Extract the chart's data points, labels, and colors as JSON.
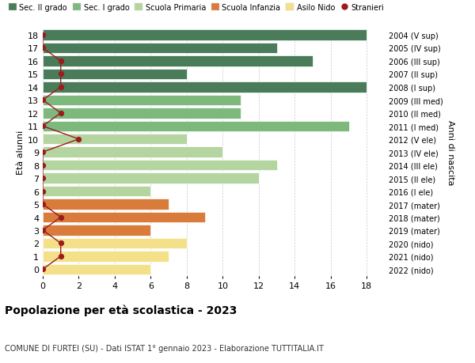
{
  "ages": [
    18,
    17,
    16,
    15,
    14,
    13,
    12,
    11,
    10,
    9,
    8,
    7,
    6,
    5,
    4,
    3,
    2,
    1,
    0
  ],
  "years": [
    "2004 (V sup)",
    "2005 (IV sup)",
    "2006 (III sup)",
    "2007 (II sup)",
    "2008 (I sup)",
    "2009 (III med)",
    "2010 (II med)",
    "2011 (I med)",
    "2012 (V ele)",
    "2013 (IV ele)",
    "2014 (III ele)",
    "2015 (II ele)",
    "2016 (I ele)",
    "2017 (mater)",
    "2018 (mater)",
    "2019 (mater)",
    "2020 (nido)",
    "2021 (nido)",
    "2022 (nido)"
  ],
  "bar_values": [
    18,
    13,
    15,
    8,
    18,
    11,
    11,
    17,
    8,
    10,
    13,
    12,
    6,
    7,
    9,
    6,
    8,
    7,
    6
  ],
  "bar_colors": [
    "#4a7c59",
    "#4a7c59",
    "#4a7c59",
    "#4a7c59",
    "#4a7c59",
    "#7db87d",
    "#7db87d",
    "#7db87d",
    "#b5d5a0",
    "#b5d5a0",
    "#b5d5a0",
    "#b5d5a0",
    "#b5d5a0",
    "#d97b3a",
    "#d97b3a",
    "#d97b3a",
    "#f5e08a",
    "#f5e08a",
    "#f5e08a"
  ],
  "stranieri_x": [
    0,
    0,
    1,
    1,
    1,
    0,
    1,
    0,
    2,
    0,
    0,
    0,
    0,
    0,
    1,
    0,
    1,
    1,
    0
  ],
  "title": "Popolazione per età scolastica - 2023",
  "subtitle": "COMUNE DI FURTEI (SU) - Dati ISTAT 1° gennaio 2023 - Elaborazione TUTTITALIA.IT",
  "ylabel_left": "Età alunni",
  "ylabel_right": "Anni di nascita",
  "xticks": [
    0,
    2,
    4,
    6,
    8,
    10,
    12,
    14,
    16,
    18
  ],
  "xlim": [
    0,
    19
  ],
  "legend_labels": [
    "Sec. II grado",
    "Sec. I grado",
    "Scuola Primaria",
    "Scuola Infanzia",
    "Asilo Nido",
    "Stranieri"
  ],
  "legend_colors": [
    "#4a7c59",
    "#7db87d",
    "#b5d5a0",
    "#d97b3a",
    "#f5e08a",
    "#9b1c1c"
  ],
  "bg_color": "#ffffff",
  "grid_color": "#cccccc",
  "bar_edge_color": "#ffffff"
}
